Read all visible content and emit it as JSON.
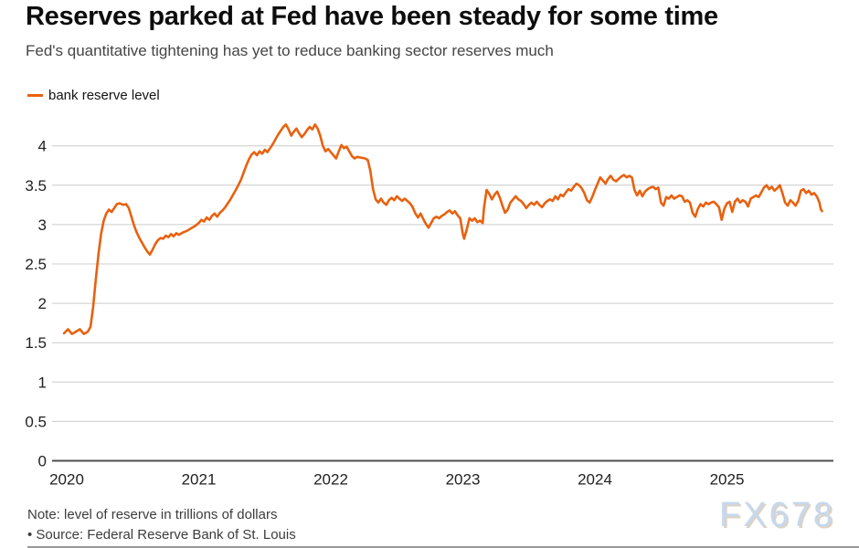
{
  "header": {
    "title": "Reserves parked at Fed have been steady for some time",
    "subtitle": "Fed's quantitative tightening has yet to reduce banking sector reserves much"
  },
  "legend": {
    "label": "bank reserve level",
    "color": "#e8610f"
  },
  "footer": {
    "note": "Note: level of reserve in trillions of dollars",
    "source": "• Source: Federal Reserve Bank of St. Louis"
  },
  "watermark": "FX678",
  "colors": {
    "line": "#e8610f",
    "grid": "#cccccc",
    "zero_axis": "#4d4d4d",
    "tick_text": "#1f1f1f"
  },
  "chart_data": {
    "type": "line",
    "title": "Reserves parked at Fed have been steady for some time",
    "subtitle": "Fed's quantitative tightening has yet to reduce banking sector reserves much",
    "xlabel": "",
    "ylabel": "level of reserve in trillions of dollars",
    "x_ticks": [
      2020,
      2021,
      2022,
      2023,
      2024,
      2025
    ],
    "y_ticks": [
      0,
      0.5,
      1,
      1.5,
      2,
      2.5,
      3,
      3.5,
      4
    ],
    "xlim": [
      2019.95,
      2025.82
    ],
    "ylim": [
      0,
      4.35
    ],
    "grid": "horizontal",
    "legend_position": "top-left",
    "series": [
      {
        "name": "bank reserve level",
        "color": "#e8610f",
        "points": [
          [
            2019.98,
            1.62
          ],
          [
            2020.01,
            1.67
          ],
          [
            2020.04,
            1.61
          ],
          [
            2020.07,
            1.64
          ],
          [
            2020.1,
            1.67
          ],
          [
            2020.13,
            1.61
          ],
          [
            2020.16,
            1.64
          ],
          [
            2020.18,
            1.7
          ],
          [
            2020.2,
            1.95
          ],
          [
            2020.22,
            2.3
          ],
          [
            2020.24,
            2.62
          ],
          [
            2020.26,
            2.88
          ],
          [
            2020.28,
            3.05
          ],
          [
            2020.3,
            3.14
          ],
          [
            2020.32,
            3.19
          ],
          [
            2020.34,
            3.16
          ],
          [
            2020.36,
            3.21
          ],
          [
            2020.38,
            3.26
          ],
          [
            2020.4,
            3.27
          ],
          [
            2020.43,
            3.25
          ],
          [
            2020.45,
            3.26
          ],
          [
            2020.47,
            3.21
          ],
          [
            2020.49,
            3.1
          ],
          [
            2020.51,
            2.99
          ],
          [
            2020.53,
            2.9
          ],
          [
            2020.55,
            2.83
          ],
          [
            2020.57,
            2.77
          ],
          [
            2020.59,
            2.71
          ],
          [
            2020.61,
            2.66
          ],
          [
            2020.63,
            2.62
          ],
          [
            2020.65,
            2.68
          ],
          [
            2020.67,
            2.75
          ],
          [
            2020.69,
            2.8
          ],
          [
            2020.71,
            2.83
          ],
          [
            2020.73,
            2.82
          ],
          [
            2020.75,
            2.86
          ],
          [
            2020.77,
            2.84
          ],
          [
            2020.79,
            2.88
          ],
          [
            2020.81,
            2.85
          ],
          [
            2020.83,
            2.89
          ],
          [
            2020.85,
            2.87
          ],
          [
            2020.88,
            2.9
          ],
          [
            2020.91,
            2.92
          ],
          [
            2020.94,
            2.95
          ],
          [
            2020.97,
            2.98
          ],
          [
            2021.0,
            3.02
          ],
          [
            2021.02,
            3.06
          ],
          [
            2021.04,
            3.04
          ],
          [
            2021.06,
            3.09
          ],
          [
            2021.08,
            3.06
          ],
          [
            2021.1,
            3.11
          ],
          [
            2021.12,
            3.14
          ],
          [
            2021.14,
            3.1
          ],
          [
            2021.16,
            3.15
          ],
          [
            2021.18,
            3.18
          ],
          [
            2021.2,
            3.22
          ],
          [
            2021.22,
            3.27
          ],
          [
            2021.24,
            3.32
          ],
          [
            2021.26,
            3.38
          ],
          [
            2021.28,
            3.44
          ],
          [
            2021.3,
            3.5
          ],
          [
            2021.32,
            3.57
          ],
          [
            2021.34,
            3.66
          ],
          [
            2021.36,
            3.75
          ],
          [
            2021.38,
            3.83
          ],
          [
            2021.4,
            3.89
          ],
          [
            2021.42,
            3.92
          ],
          [
            2021.44,
            3.88
          ],
          [
            2021.46,
            3.93
          ],
          [
            2021.48,
            3.9
          ],
          [
            2021.5,
            3.95
          ],
          [
            2021.52,
            3.92
          ],
          [
            2021.54,
            3.97
          ],
          [
            2021.56,
            4.02
          ],
          [
            2021.58,
            4.08
          ],
          [
            2021.6,
            4.14
          ],
          [
            2021.62,
            4.19
          ],
          [
            2021.64,
            4.24
          ],
          [
            2021.66,
            4.27
          ],
          [
            2021.68,
            4.21
          ],
          [
            2021.7,
            4.13
          ],
          [
            2021.72,
            4.18
          ],
          [
            2021.74,
            4.22
          ],
          [
            2021.76,
            4.16
          ],
          [
            2021.78,
            4.11
          ],
          [
            2021.8,
            4.15
          ],
          [
            2021.82,
            4.2
          ],
          [
            2021.84,
            4.24
          ],
          [
            2021.86,
            4.21
          ],
          [
            2021.88,
            4.27
          ],
          [
            2021.9,
            4.22
          ],
          [
            2021.92,
            4.13
          ],
          [
            2021.94,
            4.0
          ],
          [
            2021.96,
            3.93
          ],
          [
            2021.98,
            3.96
          ],
          [
            2022.0,
            3.92
          ],
          [
            2022.02,
            3.88
          ],
          [
            2022.04,
            3.84
          ],
          [
            2022.06,
            3.93
          ],
          [
            2022.08,
            4.01
          ],
          [
            2022.1,
            3.97
          ],
          [
            2022.12,
            3.99
          ],
          [
            2022.14,
            3.93
          ],
          [
            2022.16,
            3.87
          ],
          [
            2022.18,
            3.84
          ],
          [
            2022.2,
            3.86
          ],
          [
            2022.23,
            3.85
          ],
          [
            2022.26,
            3.84
          ],
          [
            2022.28,
            3.82
          ],
          [
            2022.3,
            3.68
          ],
          [
            2022.32,
            3.45
          ],
          [
            2022.34,
            3.32
          ],
          [
            2022.36,
            3.28
          ],
          [
            2022.38,
            3.33
          ],
          [
            2022.4,
            3.28
          ],
          [
            2022.42,
            3.25
          ],
          [
            2022.44,
            3.31
          ],
          [
            2022.46,
            3.34
          ],
          [
            2022.48,
            3.31
          ],
          [
            2022.5,
            3.36
          ],
          [
            2022.52,
            3.33
          ],
          [
            2022.54,
            3.3
          ],
          [
            2022.56,
            3.33
          ],
          [
            2022.58,
            3.3
          ],
          [
            2022.6,
            3.27
          ],
          [
            2022.62,
            3.22
          ],
          [
            2022.64,
            3.14
          ],
          [
            2022.66,
            3.09
          ],
          [
            2022.68,
            3.14
          ],
          [
            2022.7,
            3.07
          ],
          [
            2022.72,
            3.01
          ],
          [
            2022.74,
            2.96
          ],
          [
            2022.76,
            3.02
          ],
          [
            2022.78,
            3.08
          ],
          [
            2022.8,
            3.1
          ],
          [
            2022.82,
            3.08
          ],
          [
            2022.84,
            3.11
          ],
          [
            2022.86,
            3.13
          ],
          [
            2022.88,
            3.16
          ],
          [
            2022.9,
            3.18
          ],
          [
            2022.92,
            3.14
          ],
          [
            2022.94,
            3.17
          ],
          [
            2022.96,
            3.12
          ],
          [
            2022.98,
            3.08
          ],
          [
            2023.0,
            2.88
          ],
          [
            2023.01,
            2.82
          ],
          [
            2023.03,
            2.94
          ],
          [
            2023.05,
            3.08
          ],
          [
            2023.07,
            3.05
          ],
          [
            2023.09,
            3.08
          ],
          [
            2023.11,
            3.03
          ],
          [
            2023.13,
            3.05
          ],
          [
            2023.15,
            3.02
          ],
          [
            2023.16,
            3.21
          ],
          [
            2023.18,
            3.44
          ],
          [
            2023.2,
            3.39
          ],
          [
            2023.22,
            3.32
          ],
          [
            2023.24,
            3.38
          ],
          [
            2023.26,
            3.42
          ],
          [
            2023.28,
            3.34
          ],
          [
            2023.3,
            3.24
          ],
          [
            2023.32,
            3.15
          ],
          [
            2023.34,
            3.19
          ],
          [
            2023.36,
            3.28
          ],
          [
            2023.38,
            3.32
          ],
          [
            2023.4,
            3.36
          ],
          [
            2023.42,
            3.32
          ],
          [
            2023.44,
            3.3
          ],
          [
            2023.46,
            3.26
          ],
          [
            2023.48,
            3.21
          ],
          [
            2023.5,
            3.25
          ],
          [
            2023.52,
            3.28
          ],
          [
            2023.54,
            3.25
          ],
          [
            2023.56,
            3.29
          ],
          [
            2023.58,
            3.25
          ],
          [
            2023.6,
            3.22
          ],
          [
            2023.62,
            3.27
          ],
          [
            2023.64,
            3.3
          ],
          [
            2023.66,
            3.32
          ],
          [
            2023.68,
            3.3
          ],
          [
            2023.7,
            3.36
          ],
          [
            2023.72,
            3.32
          ],
          [
            2023.74,
            3.38
          ],
          [
            2023.76,
            3.36
          ],
          [
            2023.78,
            3.41
          ],
          [
            2023.8,
            3.45
          ],
          [
            2023.82,
            3.43
          ],
          [
            2023.84,
            3.48
          ],
          [
            2023.86,
            3.52
          ],
          [
            2023.88,
            3.5
          ],
          [
            2023.9,
            3.46
          ],
          [
            2023.92,
            3.4
          ],
          [
            2023.94,
            3.31
          ],
          [
            2023.96,
            3.28
          ],
          [
            2023.98,
            3.35
          ],
          [
            2024.0,
            3.44
          ],
          [
            2024.02,
            3.52
          ],
          [
            2024.04,
            3.6
          ],
          [
            2024.06,
            3.56
          ],
          [
            2024.08,
            3.52
          ],
          [
            2024.1,
            3.58
          ],
          [
            2024.12,
            3.62
          ],
          [
            2024.14,
            3.57
          ],
          [
            2024.16,
            3.55
          ],
          [
            2024.18,
            3.58
          ],
          [
            2024.2,
            3.61
          ],
          [
            2024.22,
            3.63
          ],
          [
            2024.24,
            3.6
          ],
          [
            2024.26,
            3.62
          ],
          [
            2024.28,
            3.6
          ],
          [
            2024.3,
            3.44
          ],
          [
            2024.32,
            3.37
          ],
          [
            2024.34,
            3.43
          ],
          [
            2024.36,
            3.36
          ],
          [
            2024.38,
            3.42
          ],
          [
            2024.4,
            3.45
          ],
          [
            2024.42,
            3.47
          ],
          [
            2024.44,
            3.48
          ],
          [
            2024.46,
            3.45
          ],
          [
            2024.48,
            3.47
          ],
          [
            2024.5,
            3.28
          ],
          [
            2024.52,
            3.24
          ],
          [
            2024.54,
            3.35
          ],
          [
            2024.56,
            3.33
          ],
          [
            2024.58,
            3.37
          ],
          [
            2024.6,
            3.33
          ],
          [
            2024.62,
            3.35
          ],
          [
            2024.64,
            3.37
          ],
          [
            2024.66,
            3.36
          ],
          [
            2024.68,
            3.29
          ],
          [
            2024.7,
            3.31
          ],
          [
            2024.72,
            3.28
          ],
          [
            2024.74,
            3.15
          ],
          [
            2024.76,
            3.1
          ],
          [
            2024.78,
            3.2
          ],
          [
            2024.8,
            3.26
          ],
          [
            2024.82,
            3.23
          ],
          [
            2024.84,
            3.28
          ],
          [
            2024.86,
            3.26
          ],
          [
            2024.88,
            3.28
          ],
          [
            2024.9,
            3.29
          ],
          [
            2024.92,
            3.26
          ],
          [
            2024.94,
            3.22
          ],
          [
            2024.96,
            3.06
          ],
          [
            2024.98,
            3.2
          ],
          [
            2025.0,
            3.27
          ],
          [
            2025.02,
            3.29
          ],
          [
            2025.04,
            3.16
          ],
          [
            2025.06,
            3.29
          ],
          [
            2025.08,
            3.33
          ],
          [
            2025.1,
            3.28
          ],
          [
            2025.12,
            3.31
          ],
          [
            2025.14,
            3.29
          ],
          [
            2025.16,
            3.23
          ],
          [
            2025.18,
            3.33
          ],
          [
            2025.2,
            3.35
          ],
          [
            2025.22,
            3.37
          ],
          [
            2025.24,
            3.35
          ],
          [
            2025.26,
            3.41
          ],
          [
            2025.28,
            3.47
          ],
          [
            2025.3,
            3.5
          ],
          [
            2025.32,
            3.45
          ],
          [
            2025.34,
            3.48
          ],
          [
            2025.36,
            3.43
          ],
          [
            2025.38,
            3.46
          ],
          [
            2025.4,
            3.5
          ],
          [
            2025.42,
            3.4
          ],
          [
            2025.44,
            3.28
          ],
          [
            2025.46,
            3.24
          ],
          [
            2025.48,
            3.31
          ],
          [
            2025.5,
            3.28
          ],
          [
            2025.52,
            3.24
          ],
          [
            2025.54,
            3.3
          ],
          [
            2025.56,
            3.43
          ],
          [
            2025.58,
            3.45
          ],
          [
            2025.6,
            3.4
          ],
          [
            2025.62,
            3.43
          ],
          [
            2025.64,
            3.38
          ],
          [
            2025.66,
            3.4
          ],
          [
            2025.68,
            3.36
          ],
          [
            2025.7,
            3.28
          ],
          [
            2025.71,
            3.2
          ],
          [
            2025.72,
            3.17
          ]
        ]
      }
    ]
  }
}
